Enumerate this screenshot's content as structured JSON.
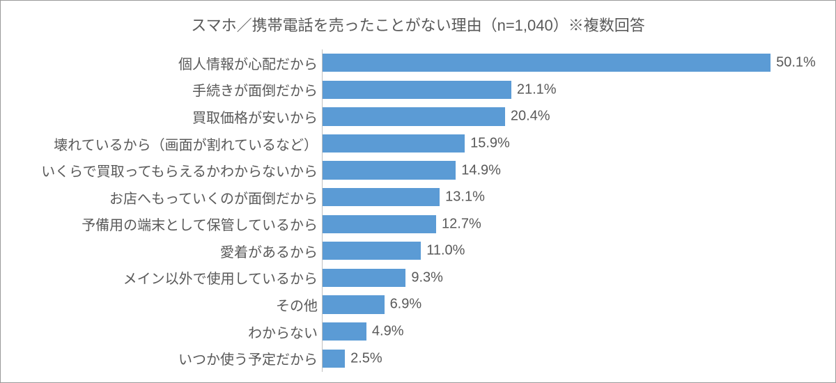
{
  "chart": {
    "type": "bar-horizontal",
    "title": "スマホ／携帯電話を売ったことがない理由（n=1,040）※複数回答",
    "title_fontsize": 22,
    "title_color": "#595959",
    "label_fontsize": 20,
    "label_color": "#595959",
    "value_fontsize": 20,
    "value_color": "#595959",
    "bar_color": "#5b9bd5",
    "background_color": "#ffffff",
    "border_color": "#999999",
    "axis_color": "#bfbfbf",
    "xmax_percent": 55,
    "categories": [
      "個人情報が心配だから",
      "手続きが面倒だから",
      "買取価格が安いから",
      "壊れているから（画面が割れているなど）",
      "いくらで買取ってもらえるかわからないから",
      "お店へもっていくのが面倒だから",
      "予備用の端末として保管しているから",
      "愛着があるから",
      "メイン以外で使用しているから",
      "その他",
      "わからない",
      "いつか使う予定だから"
    ],
    "values": [
      50.1,
      21.1,
      20.4,
      15.9,
      14.9,
      13.1,
      12.7,
      11.0,
      9.3,
      6.9,
      4.9,
      2.5
    ],
    "value_labels": [
      "50.1%",
      "21.1%",
      "20.4%",
      "15.9%",
      "14.9%",
      "13.1%",
      "12.7%",
      "11.0%",
      "9.3%",
      "6.9%",
      "4.9%",
      "2.5%"
    ]
  }
}
